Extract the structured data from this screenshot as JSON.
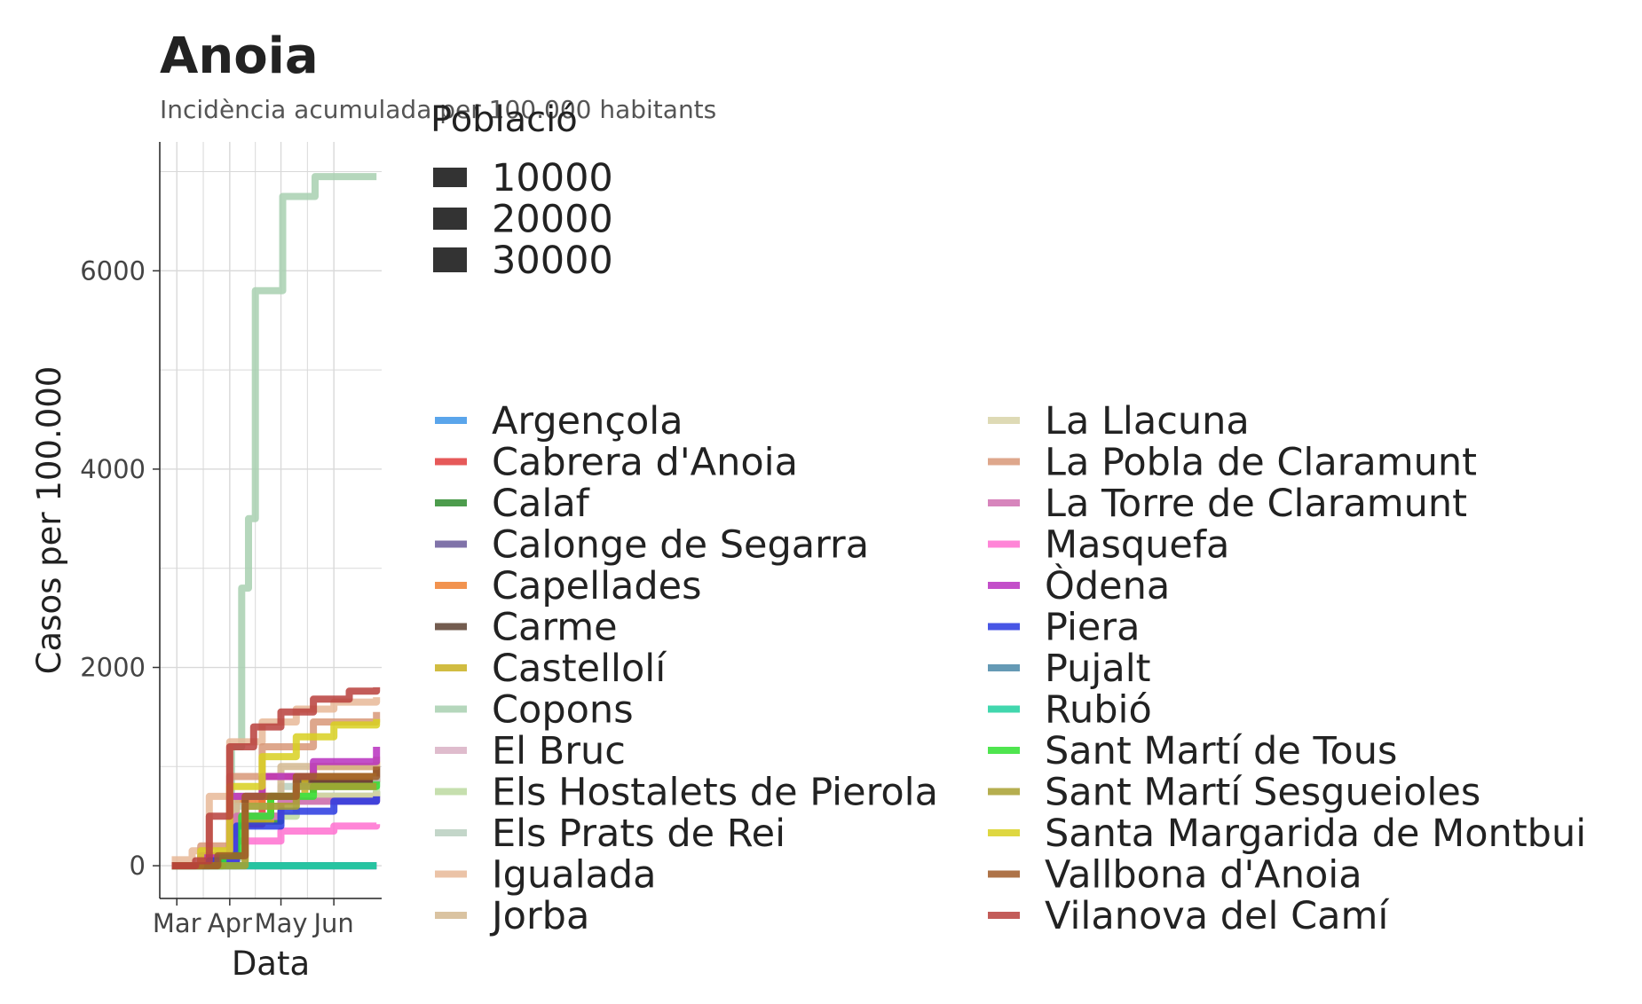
{
  "chart_data": {
    "type": "line",
    "title": "Anoia",
    "subtitle": "Incidència acumulada per 100.000 habitants",
    "xlabel": "Data",
    "ylabel": "Casos per 100.000",
    "x_ticks": [
      {
        "date": "2020-03-01",
        "label": "Mar"
      },
      {
        "date": "2020-04-01",
        "label": "Apr"
      },
      {
        "date": "2020-05-01",
        "label": "May"
      },
      {
        "date": "2020-06-01",
        "label": "Jun"
      }
    ],
    "y_ticks": [
      0,
      2000,
      4000,
      6000
    ],
    "xlim": [
      "2020-02-20",
      "2020-06-29"
    ],
    "ylim": [
      -330,
      7300
    ],
    "grid": true,
    "size_legend": {
      "title": "Població",
      "entries": [
        "10000",
        "20000",
        "30000"
      ]
    },
    "series": [
      {
        "name": "Argençola",
        "color": "#3d95e8",
        "points": [
          [
            "2020-02-27",
            0
          ],
          [
            "2020-06-26",
            0
          ]
        ]
      },
      {
        "name": "Cabrera d'Anoia",
        "color": "#e23c3c",
        "points": [
          [
            "2020-02-27",
            0
          ],
          [
            "2020-03-20",
            60
          ],
          [
            "2020-04-01",
            420
          ],
          [
            "2020-04-20",
            700
          ],
          [
            "2020-05-20",
            850
          ],
          [
            "2020-06-26",
            900
          ]
        ]
      },
      {
        "name": "Calaf",
        "color": "#2e8b2e",
        "points": [
          [
            "2020-02-27",
            0
          ],
          [
            "2020-03-25",
            80
          ],
          [
            "2020-04-05",
            450
          ],
          [
            "2020-05-01",
            700
          ],
          [
            "2020-06-26",
            750
          ]
        ]
      },
      {
        "name": "Calonge de Segarra",
        "color": "#6a5a9a",
        "points": [
          [
            "2020-02-27",
            0
          ],
          [
            "2020-06-26",
            0
          ]
        ]
      },
      {
        "name": "Capellades",
        "color": "#f08030",
        "points": [
          [
            "2020-02-27",
            0
          ],
          [
            "2020-03-18",
            100
          ],
          [
            "2020-04-01",
            650
          ],
          [
            "2020-04-20",
            900
          ],
          [
            "2020-05-20",
            1000
          ],
          [
            "2020-06-26",
            1050
          ]
        ]
      },
      {
        "name": "Carme",
        "color": "#5a4030",
        "points": [
          [
            "2020-02-27",
            0
          ],
          [
            "2020-03-28",
            100
          ],
          [
            "2020-04-10",
            700
          ],
          [
            "2020-05-10",
            850
          ],
          [
            "2020-06-26",
            1000
          ]
        ]
      },
      {
        "name": "Castellolí",
        "color": "#c9b020",
        "points": [
          [
            "2020-02-27",
            0
          ],
          [
            "2020-04-01",
            0
          ],
          [
            "2020-04-05",
            450
          ],
          [
            "2020-04-25",
            700
          ],
          [
            "2020-05-15",
            900
          ],
          [
            "2020-06-26",
            900
          ]
        ]
      },
      {
        "name": "Copons",
        "color": "#a8d0b0",
        "points": [
          [
            "2020-02-27",
            0
          ],
          [
            "2020-03-28",
            0
          ],
          [
            "2020-04-02",
            1200
          ],
          [
            "2020-04-08",
            2800
          ],
          [
            "2020-04-12",
            3500
          ],
          [
            "2020-04-16",
            5800
          ],
          [
            "2020-05-01",
            5800
          ],
          [
            "2020-05-02",
            6750
          ],
          [
            "2020-05-20",
            6750
          ],
          [
            "2020-05-21",
            6950
          ],
          [
            "2020-06-26",
            6950
          ]
        ]
      },
      {
        "name": "El Bruc",
        "color": "#d9b0c4",
        "points": [
          [
            "2020-02-27",
            0
          ],
          [
            "2020-03-20",
            100
          ],
          [
            "2020-04-05",
            500
          ],
          [
            "2020-05-01",
            650
          ],
          [
            "2020-06-26",
            700
          ]
        ]
      },
      {
        "name": "Els Hostalets de Pierola",
        "color": "#bcd9a0",
        "points": [
          [
            "2020-02-27",
            0
          ],
          [
            "2020-03-25",
            80
          ],
          [
            "2020-04-10",
            500
          ],
          [
            "2020-05-10",
            700
          ],
          [
            "2020-06-26",
            800
          ]
        ]
      },
      {
        "name": "Els Prats de Rei",
        "color": "#b8cfc0",
        "points": [
          [
            "2020-02-27",
            0
          ],
          [
            "2020-03-30",
            0
          ],
          [
            "2020-04-05",
            600
          ],
          [
            "2020-05-01",
            800
          ],
          [
            "2020-06-26",
            900
          ]
        ]
      },
      {
        "name": "Igualada",
        "color": "#e8b898",
        "points": [
          [
            "2020-02-27",
            60
          ],
          [
            "2020-03-10",
            150
          ],
          [
            "2020-03-20",
            700
          ],
          [
            "2020-04-01",
            1250
          ],
          [
            "2020-04-20",
            1450
          ],
          [
            "2020-05-10",
            1580
          ],
          [
            "2020-06-01",
            1650
          ],
          [
            "2020-06-26",
            1700
          ]
        ]
      },
      {
        "name": "Jorba",
        "color": "#d4b890",
        "points": [
          [
            "2020-02-27",
            0
          ],
          [
            "2020-03-25",
            150
          ],
          [
            "2020-04-05",
            700
          ],
          [
            "2020-05-01",
            1000
          ],
          [
            "2020-06-26",
            1100
          ]
        ]
      },
      {
        "name": "La Llacuna",
        "color": "#d8d4a8",
        "points": [
          [
            "2020-02-27",
            0
          ],
          [
            "2020-04-01",
            0
          ],
          [
            "2020-04-10",
            500
          ],
          [
            "2020-05-01",
            700
          ],
          [
            "2020-06-26",
            750
          ]
        ]
      },
      {
        "name": "La Pobla de Claramunt",
        "color": "#d89878",
        "points": [
          [
            "2020-02-27",
            0
          ],
          [
            "2020-03-15",
            200
          ],
          [
            "2020-04-01",
            900
          ],
          [
            "2020-04-20",
            1200
          ],
          [
            "2020-05-20",
            1450
          ],
          [
            "2020-06-26",
            1550
          ]
        ]
      },
      {
        "name": "La Torre de Claramunt",
        "color": "#d070b0",
        "points": [
          [
            "2020-02-27",
            0
          ],
          [
            "2020-03-20",
            100
          ],
          [
            "2020-04-05",
            500
          ],
          [
            "2020-05-01",
            650
          ],
          [
            "2020-06-26",
            700
          ]
        ]
      },
      {
        "name": "Masquefa",
        "color": "#ff70d0",
        "points": [
          [
            "2020-02-27",
            0
          ],
          [
            "2020-03-25",
            50
          ],
          [
            "2020-04-05",
            250
          ],
          [
            "2020-05-01",
            350
          ],
          [
            "2020-06-01",
            400
          ],
          [
            "2020-06-26",
            420
          ]
        ]
      },
      {
        "name": "Òdena",
        "color": "#b830c0",
        "points": [
          [
            "2020-02-27",
            0
          ],
          [
            "2020-03-15",
            100
          ],
          [
            "2020-04-01",
            700
          ],
          [
            "2020-04-20",
            900
          ],
          [
            "2020-05-20",
            1050
          ],
          [
            "2020-06-26",
            1200
          ]
        ]
      },
      {
        "name": "Piera",
        "color": "#2838e0",
        "points": [
          [
            "2020-02-27",
            0
          ],
          [
            "2020-03-20",
            50
          ],
          [
            "2020-04-05",
            400
          ],
          [
            "2020-05-01",
            550
          ],
          [
            "2020-06-01",
            650
          ],
          [
            "2020-06-26",
            700
          ]
        ]
      },
      {
        "name": "Pujalt",
        "color": "#4a88a8",
        "points": [
          [
            "2020-02-27",
            0
          ],
          [
            "2020-06-26",
            0
          ]
        ]
      },
      {
        "name": "Rubió",
        "color": "#20d0a0",
        "points": [
          [
            "2020-02-27",
            0
          ],
          [
            "2020-06-26",
            0
          ]
        ]
      },
      {
        "name": "Sant Martí de Tous",
        "color": "#30e030",
        "points": [
          [
            "2020-02-27",
            0
          ],
          [
            "2020-03-28",
            100
          ],
          [
            "2020-04-08",
            500
          ],
          [
            "2020-04-25",
            700
          ],
          [
            "2020-05-20",
            800
          ],
          [
            "2020-06-26",
            850
          ]
        ]
      },
      {
        "name": "Sant Martí Sesgueioles",
        "color": "#a8a030",
        "points": [
          [
            "2020-02-27",
            0
          ],
          [
            "2020-04-05",
            0
          ],
          [
            "2020-04-10",
            600
          ],
          [
            "2020-05-10",
            800
          ],
          [
            "2020-06-26",
            800
          ]
        ]
      },
      {
        "name": "Santa Margarida de Montbui",
        "color": "#d8d020",
        "points": [
          [
            "2020-02-27",
            0
          ],
          [
            "2020-03-15",
            150
          ],
          [
            "2020-04-01",
            800
          ],
          [
            "2020-04-20",
            1100
          ],
          [
            "2020-05-10",
            1300
          ],
          [
            "2020-06-01",
            1420
          ],
          [
            "2020-06-26",
            1480
          ]
        ]
      },
      {
        "name": "Vallbona d'Anoia",
        "color": "#a05a28",
        "points": [
          [
            "2020-02-27",
            0
          ],
          [
            "2020-03-25",
            100
          ],
          [
            "2020-04-10",
            700
          ],
          [
            "2020-05-10",
            900
          ],
          [
            "2020-06-26",
            1000
          ]
        ]
      },
      {
        "name": "Vilanova del Camí",
        "color": "#b8403c",
        "points": [
          [
            "2020-02-27",
            0
          ],
          [
            "2020-03-12",
            50
          ],
          [
            "2020-03-20",
            500
          ],
          [
            "2020-04-01",
            1200
          ],
          [
            "2020-04-15",
            1400
          ],
          [
            "2020-05-01",
            1550
          ],
          [
            "2020-05-20",
            1680
          ],
          [
            "2020-06-10",
            1760
          ],
          [
            "2020-06-26",
            1800
          ]
        ]
      }
    ]
  }
}
